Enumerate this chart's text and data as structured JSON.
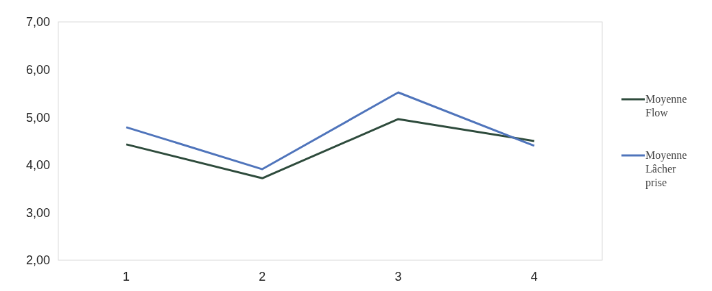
{
  "chart_data": {
    "type": "line",
    "categories": [
      "1",
      "2",
      "3",
      "4"
    ],
    "series": [
      {
        "name": "Moyenne Flow",
        "color": "#2e4b3c",
        "values": [
          4.43,
          3.72,
          4.96,
          4.5
        ]
      },
      {
        "name": "Moyenne Lâcher prise",
        "color": "#4f74bb",
        "values": [
          4.79,
          3.91,
          5.52,
          4.4
        ]
      }
    ],
    "ylim": [
      2,
      7
    ],
    "yticks": [
      {
        "value": 2,
        "label": "2,00"
      },
      {
        "value": 3,
        "label": "3,00"
      },
      {
        "value": 4,
        "label": "4,00"
      },
      {
        "value": 5,
        "label": "5,00"
      },
      {
        "value": 6,
        "label": "6,00"
      },
      {
        "value": 7,
        "label": "7,00"
      }
    ],
    "grid": false,
    "legend": "right",
    "marker": "none",
    "line_style": "solid"
  }
}
